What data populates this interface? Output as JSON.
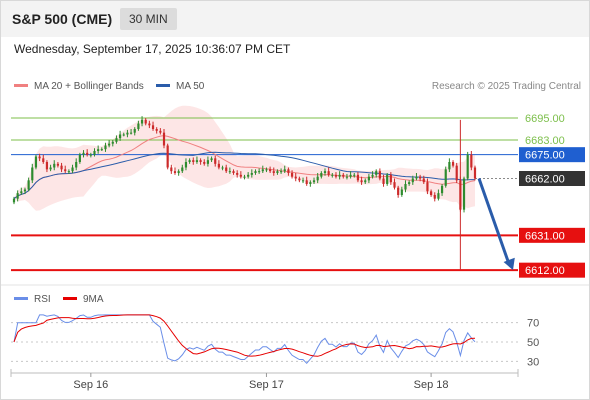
{
  "header": {
    "title": "S&P 500 (CME)",
    "timeframe": "30 MIN",
    "datetime": "Wednesday, September 17, 2025 10:36:07 PM CET",
    "credit": "Research © 2025 Trading Central"
  },
  "legend": [
    {
      "label": "MA 20 + Bollinger Bands",
      "color": "#f08080"
    },
    {
      "label": "MA 50",
      "color": "#2a5caa"
    }
  ],
  "rsi_legend": [
    {
      "label": "RSI",
      "color": "#6a8ee8"
    },
    {
      "label": "9MA",
      "color": "#e60000"
    }
  ],
  "colors": {
    "up": "#2e8b2e",
    "down": "#cc2a2a",
    "resistance": "#7cbf4a",
    "pivot": "#1f5fd0",
    "support": "#e61010",
    "current": "#333333",
    "arrow": "#2a5caa",
    "band": "#fbd2d2"
  },
  "chart_data": [
    {
      "type": "candlestick",
      "x_tick_labels": [
        "Sep 16",
        "Sep 17",
        "Sep 18"
      ],
      "x_tick_index": [
        21,
        69,
        114
      ],
      "ylim": [
        6605,
        6701
      ],
      "levels": [
        {
          "value": 6695.0,
          "label": "6695.00",
          "kind": "resistance"
        },
        {
          "value": 6683.0,
          "label": "6683.00",
          "kind": "resistance"
        },
        {
          "value": 6675.0,
          "label": "6675.00",
          "kind": "pivot"
        },
        {
          "value": 6662.0,
          "label": "6662.00",
          "kind": "current"
        },
        {
          "value": 6631.0,
          "label": "6631.00",
          "kind": "support"
        },
        {
          "value": 6612.0,
          "label": "6612.00",
          "kind": "support"
        }
      ],
      "close": [
        6651.0,
        6654.0,
        6655.0,
        6656.0,
        6661.0,
        6668.0,
        6674.0,
        6673.0,
        6671.0,
        6667.0,
        6668.0,
        6670.0,
        6669.0,
        6667.0,
        6666.0,
        6666.0,
        6668.0,
        6671.0,
        6675.0,
        6676.0,
        6675.0,
        6675.0,
        6677.0,
        6678.0,
        6678.0,
        6680.0,
        6681.0,
        6682.0,
        6684.0,
        6686.0,
        6686.0,
        6687.0,
        6687.0,
        6689.0,
        6692.0,
        6694.0,
        6692.0,
        6691.0,
        6689.0,
        6688.0,
        6687.0,
        6680.0,
        6668.0,
        6666.0,
        6665.0,
        6666.0,
        6668.0,
        6671.0,
        6672.0,
        6671.0,
        6672.0,
        6671.0,
        6670.0,
        6672.0,
        6673.0,
        6670.0,
        6668.0,
        6668.0,
        6666.0,
        6666.0,
        6665.0,
        6664.0,
        6663.0,
        6663.0,
        6664.0,
        6665.0,
        6666.0,
        6666.0,
        6667.0,
        6667.0,
        6666.0,
        6665.0,
        6666.0,
        6666.0,
        6667.0,
        6665.0,
        6663.0,
        6662.0,
        6661.0,
        6661.0,
        6659.0,
        6660.0,
        6661.0,
        6663.0,
        6665.0,
        6666.0,
        6664.0,
        6664.0,
        6663.0,
        6664.0,
        6663.0,
        6663.0,
        6664.0,
        6664.0,
        6661.0,
        6660.0,
        6661.0,
        6663.0,
        6664.0,
        6666.0,
        6662.0,
        6659.0,
        6664.0,
        6660.0,
        6657.0,
        6653.0,
        6656.0,
        6659.0,
        6660.0,
        6662.0,
        6663.0,
        6662.0,
        6660.0,
        6655.0,
        6653.0,
        6651.0,
        6654.0,
        6658.0,
        6667.0,
        6671.0,
        6669.0,
        6661.0,
        6645.0,
        6662.0,
        6675.0,
        6668.0,
        6662.0
      ],
      "rsi": {
        "ylim": [
          20,
          80
        ],
        "ticks": [
          70,
          50,
          30
        ],
        "tick_labels": [
          "70",
          "50",
          "30"
        ]
      }
    }
  ]
}
